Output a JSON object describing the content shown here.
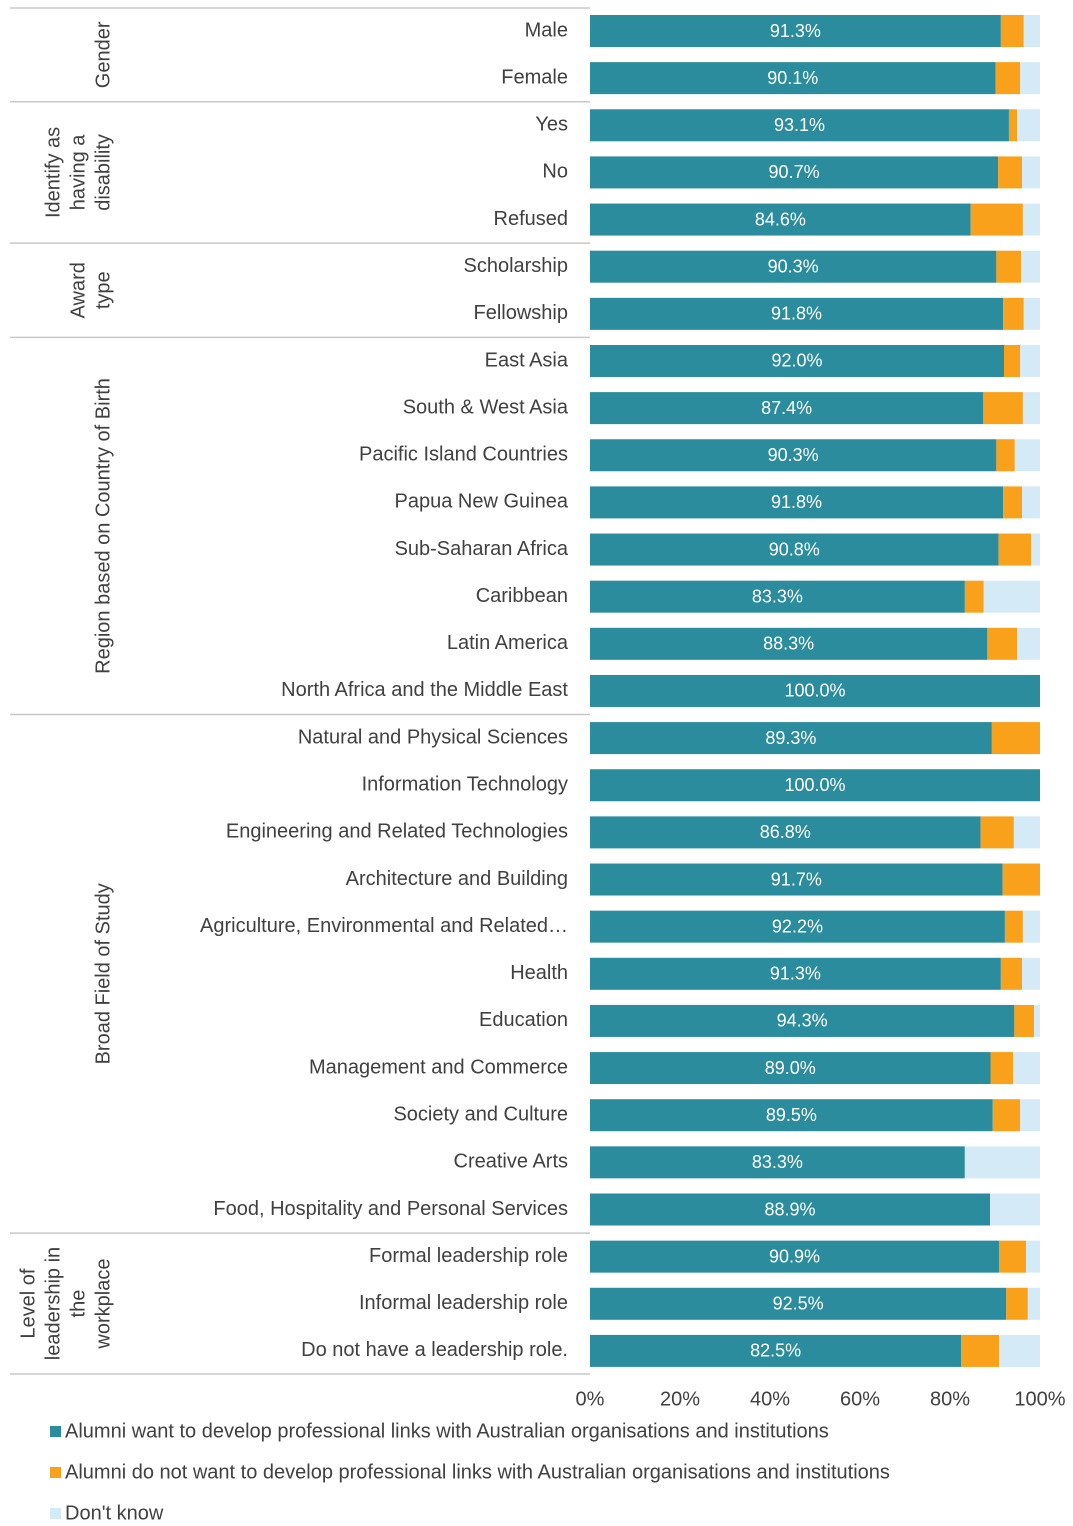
{
  "chart_data": {
    "type": "stacked_barh",
    "categories": [
      "Male",
      "Female",
      "Yes",
      "No",
      "Refused",
      "Scholarship",
      "Fellowship",
      "East Asia",
      "South & West Asia",
      "Pacific Island Countries",
      "Papua New Guinea",
      "Sub-Saharan Africa",
      "Caribbean",
      "Latin America",
      "North Africa and the Middle East",
      "Natural and Physical Sciences",
      "Information Technology",
      "Engineering and Related Technologies",
      "Architecture and Building",
      "Agriculture, Environmental and Related…",
      "Health",
      "Education",
      "Management and Commerce",
      "Society and Culture",
      "Creative Arts",
      "Food, Hospitality and Personal Services",
      "Formal leadership role",
      "Informal leadership role",
      "Do not have a leadership role."
    ],
    "groups": [
      {
        "label_lines": [
          "Gender"
        ],
        "count": 2
      },
      {
        "label_lines": [
          "Identify as",
          "having a",
          "disability"
        ],
        "count": 3
      },
      {
        "label_lines": [
          "Award",
          "type"
        ],
        "count": 2
      },
      {
        "label_lines": [
          "Region based on Country of Birth"
        ],
        "count": 8
      },
      {
        "label_lines": [
          "Broad Field of Study"
        ],
        "count": 11
      },
      {
        "label_lines": [
          "Level of",
          "leadership in",
          "the",
          "workplace"
        ],
        "count": 3
      }
    ],
    "series": [
      {
        "name": "Alumni want to develop professional links with Australian organisations and institutions",
        "color": "#2a8c9c",
        "values": [
          91.3,
          90.1,
          93.1,
          90.7,
          84.6,
          90.3,
          91.8,
          92.0,
          87.4,
          90.3,
          91.8,
          90.8,
          83.3,
          88.3,
          100.0,
          89.3,
          100.0,
          86.8,
          91.7,
          92.2,
          91.3,
          94.3,
          89.0,
          89.5,
          83.3,
          88.9,
          90.9,
          92.5,
          82.5
        ],
        "value_labels": [
          "91.3%",
          "90.1%",
          "93.1%",
          "90.7%",
          "84.6%",
          "90.3%",
          "91.8%",
          "92.0%",
          "87.4%",
          "90.3%",
          "91.8%",
          "90.8%",
          "83.3%",
          "88.3%",
          "100.0%",
          "89.3%",
          "100.0%",
          "86.8%",
          "91.7%",
          "92.2%",
          "91.3%",
          "94.3%",
          "89.0%",
          "89.5%",
          "83.3%",
          "88.9%",
          "90.9%",
          "92.5%",
          "82.5%"
        ]
      },
      {
        "name": "Alumni do not want to develop professional links with Australian organisations and institutions",
        "color": "#f9a11b",
        "values": [
          5.1,
          5.5,
          1.8,
          5.3,
          11.6,
          5.5,
          4.6,
          3.6,
          8.8,
          4.1,
          4.2,
          7.2,
          4.2,
          6.6,
          0,
          10.7,
          0,
          7.4,
          8.3,
          4.0,
          4.7,
          4.4,
          5.0,
          6.1,
          0,
          0,
          6.0,
          4.8,
          8.4
        ]
      },
      {
        "name": "Don't know",
        "color": "#d5eaf7",
        "values": [
          3.6,
          4.4,
          5.1,
          4.0,
          3.8,
          4.2,
          3.6,
          4.4,
          3.8,
          5.6,
          4.0,
          2.0,
          12.5,
          5.1,
          0,
          0,
          0,
          5.8,
          0,
          3.8,
          4.0,
          1.3,
          6.0,
          4.4,
          16.7,
          11.1,
          3.1,
          2.7,
          9.1
        ]
      }
    ],
    "xlim": [
      0,
      100
    ],
    "xticks": [
      {
        "value": 0,
        "label": "0%"
      },
      {
        "value": 20,
        "label": "20%"
      },
      {
        "value": 40,
        "label": "40%"
      },
      {
        "value": 60,
        "label": "60%"
      },
      {
        "value": 80,
        "label": "80%"
      },
      {
        "value": 100,
        "label": "100%"
      }
    ]
  }
}
